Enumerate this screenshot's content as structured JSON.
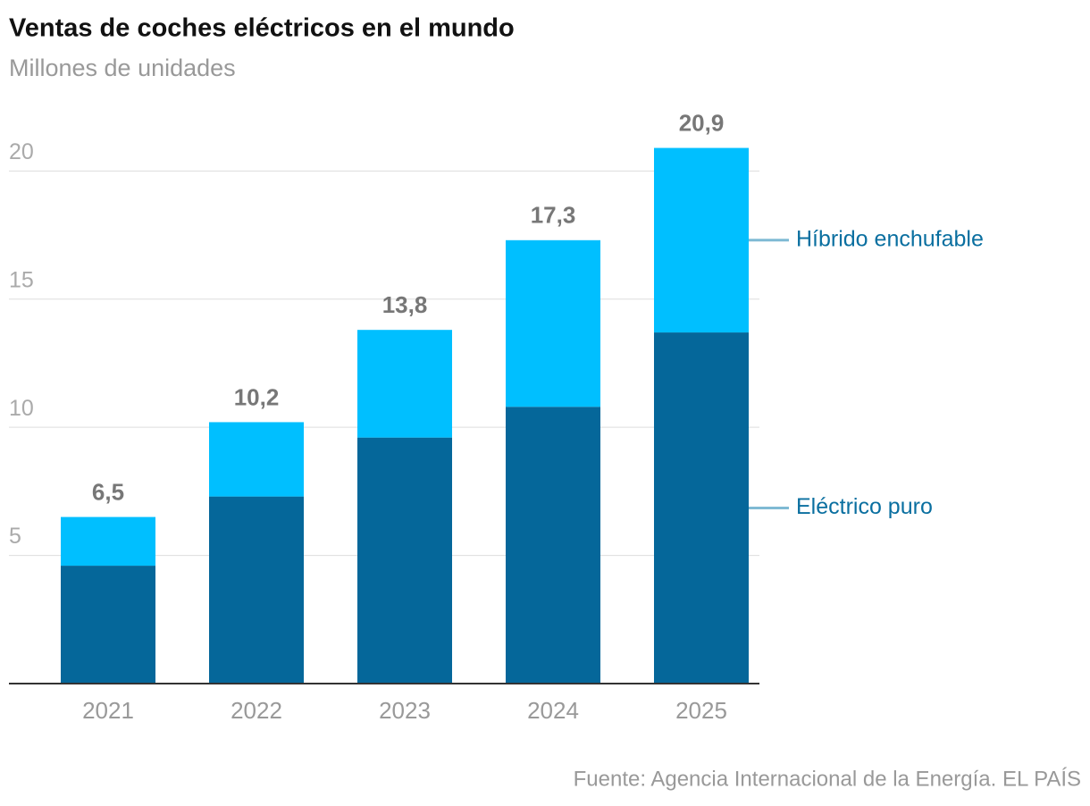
{
  "chart_data": {
    "type": "stacked-bar",
    "title": "Ventas de coches eléctricos en el mundo",
    "subtitle": "Millones de unidades",
    "categories": [
      "2021",
      "2022",
      "2023",
      "2024",
      "2025"
    ],
    "series": [
      {
        "name": "Eléctrico puro",
        "color": "#05679a",
        "values": [
          4.6,
          7.3,
          9.6,
          10.8,
          13.7
        ]
      },
      {
        "name": "Híbrido enchufable",
        "color": "#00bfff",
        "values": [
          1.9,
          2.9,
          4.2,
          6.5,
          7.2
        ]
      }
    ],
    "totals": [
      6.5,
      10.2,
      13.8,
      17.3,
      20.9
    ],
    "total_labels": [
      "6,5",
      "10,2",
      "13,8",
      "17,3",
      "20,9"
    ],
    "ylim": [
      0,
      22
    ],
    "yticks": [
      5,
      10,
      15,
      20
    ],
    "grid": true,
    "source": "Fuente: Agencia Internacional de la Energía. EL PAÍS"
  }
}
